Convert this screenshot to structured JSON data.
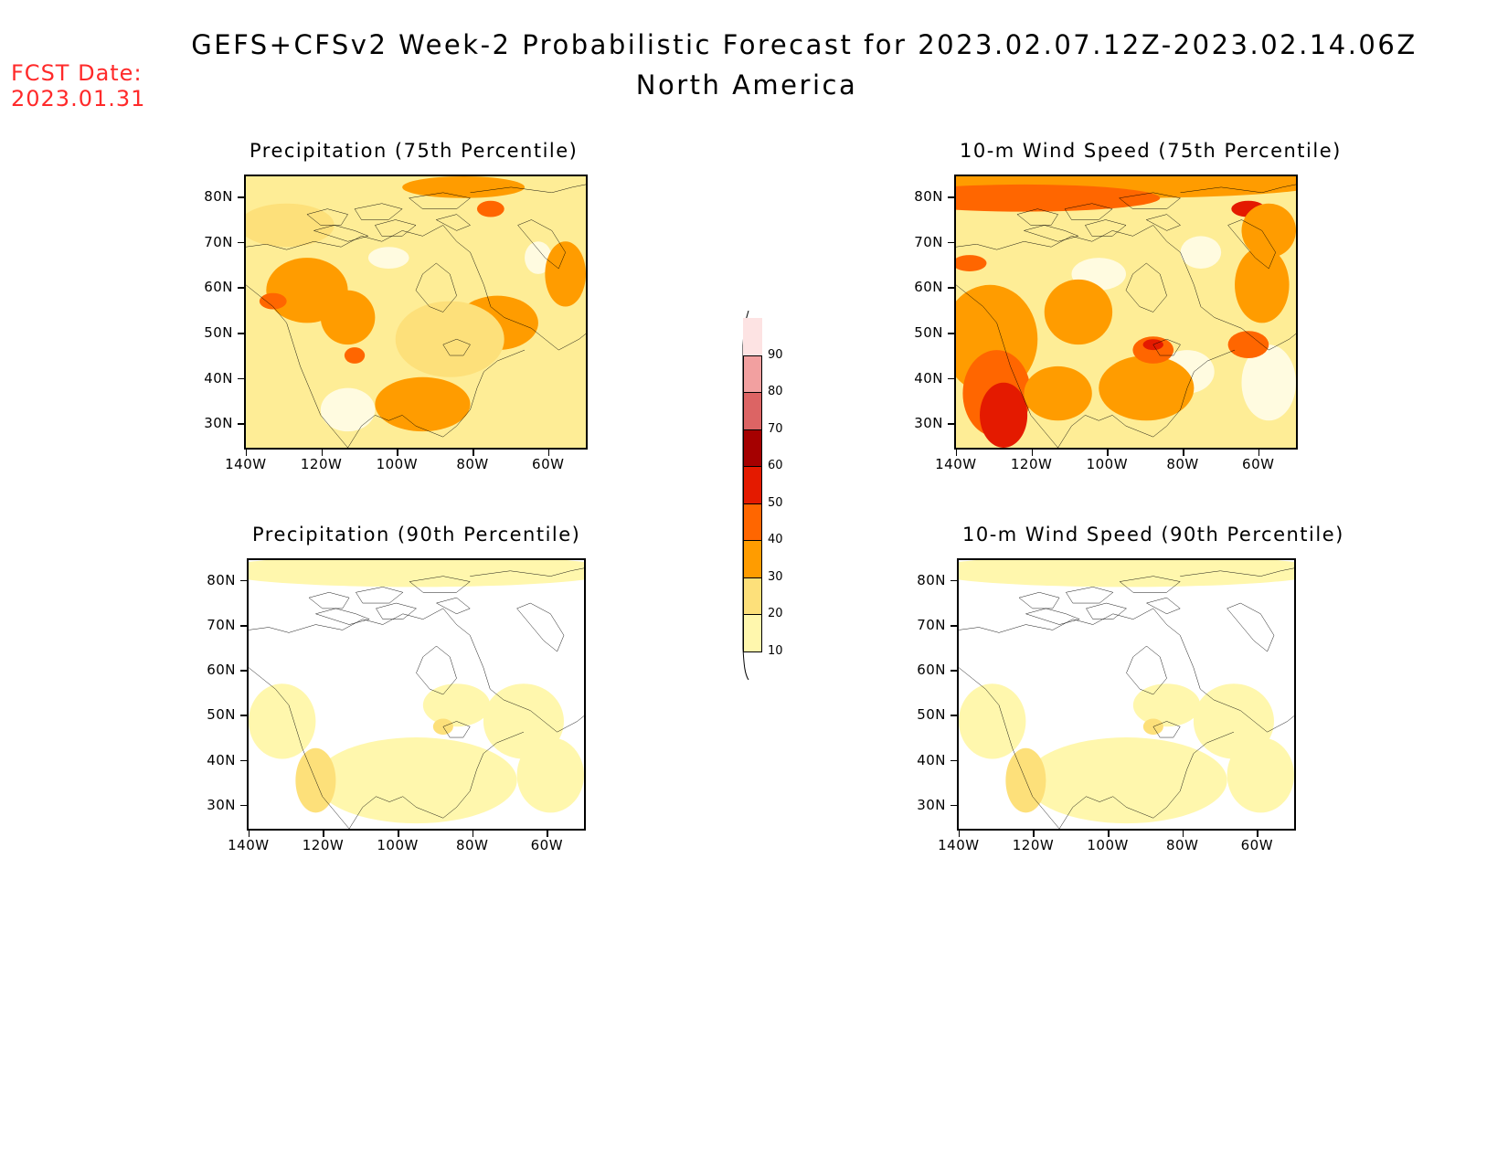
{
  "header": {
    "title_line1": "GEFS+CFSv2 Week-2 Probabilistic Forecast for 2023.02.07.12Z-2023.02.14.06Z",
    "title_line2": "North America",
    "fcst_label": "FCST Date:",
    "fcst_date": "2023.01.31"
  },
  "axes": {
    "lat_labels": [
      "80N",
      "70N",
      "60N",
      "50N",
      "40N",
      "30N"
    ],
    "lon_labels": [
      "140W",
      "120W",
      "100W",
      "80W",
      "60W"
    ]
  },
  "panels": [
    {
      "title": "Precipitation (75th Percentile)",
      "intensity": "moderate"
    },
    {
      "title": "10-m Wind Speed (75th Percentile)",
      "intensity": "high"
    },
    {
      "title": "Precipitation (90th Percentile)",
      "intensity": "low"
    },
    {
      "title": "10-m Wind Speed (90th Percentile)",
      "intensity": "low"
    }
  ],
  "colorbar": {
    "levels": [
      "90",
      "80",
      "70",
      "60",
      "50",
      "40",
      "30",
      "20",
      "10"
    ],
    "colors": [
      "#fde3e3",
      "#f2a0a0",
      "#dc6464",
      "#a50000",
      "#e41a00",
      "#ff6600",
      "#ff9c00",
      "#fde07a",
      "#fff7ad"
    ]
  }
}
